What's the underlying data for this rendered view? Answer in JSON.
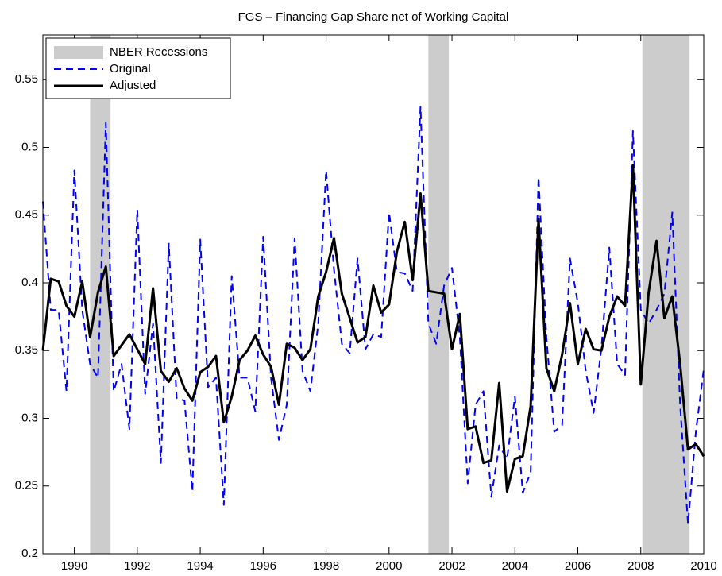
{
  "chart_data": {
    "type": "line",
    "title": "FGS – Financing Gap Share net of Working Capital",
    "x": [
      1989,
      1989.25,
      1989.5,
      1989.75,
      1990,
      1990.25,
      1990.5,
      1990.75,
      1991,
      1991.25,
      1991.5,
      1991.75,
      1992,
      1992.25,
      1992.5,
      1992.75,
      1993,
      1993.25,
      1993.5,
      1993.75,
      1994,
      1994.25,
      1994.5,
      1994.75,
      1995,
      1995.25,
      1995.5,
      1995.75,
      1996,
      1996.25,
      1996.5,
      1996.75,
      1997,
      1997.25,
      1997.5,
      1997.75,
      1998,
      1998.25,
      1998.5,
      1998.75,
      1999,
      1999.25,
      1999.5,
      1999.75,
      2000,
      2000.25,
      2000.5,
      2000.75,
      2001,
      2001.25,
      2001.5,
      2001.75,
      2002,
      2002.25,
      2002.5,
      2002.75,
      2003,
      2003.25,
      2003.5,
      2003.75,
      2004,
      2004.25,
      2004.5,
      2004.75,
      2005,
      2005.25,
      2005.5,
      2005.75,
      2006,
      2006.25,
      2006.5,
      2006.75,
      2007,
      2007.25,
      2007.5,
      2007.75,
      2008,
      2008.25,
      2008.5,
      2008.75,
      2009,
      2009.25,
      2009.5,
      2009.75,
      2010
    ],
    "recessions": {
      "name": "NBER Recessions",
      "color": "#cccccc",
      "spans": [
        [
          1990.5,
          1991.15
        ],
        [
          2001.25,
          2001.9
        ],
        [
          2008.05,
          2009.55
        ]
      ]
    },
    "series": [
      {
        "name": "Original",
        "color": "#0000ff",
        "line_style": "dashed",
        "width": 2,
        "values": [
          0.46,
          0.38,
          0.38,
          0.32,
          0.483,
          0.38,
          0.34,
          0.33,
          0.518,
          0.32,
          0.34,
          0.292,
          0.454,
          0.318,
          0.37,
          0.267,
          0.429,
          0.315,
          0.313,
          0.246,
          0.432,
          0.323,
          0.33,
          0.236,
          0.405,
          0.33,
          0.33,
          0.305,
          0.434,
          0.33,
          0.284,
          0.31,
          0.433,
          0.335,
          0.32,
          0.37,
          0.483,
          0.41,
          0.355,
          0.348,
          0.418,
          0.351,
          0.362,
          0.36,
          0.452,
          0.408,
          0.407,
          0.394,
          0.53,
          0.37,
          0.355,
          0.398,
          0.411,
          0.36,
          0.252,
          0.31,
          0.32,
          0.242,
          0.28,
          0.27,
          0.316,
          0.245,
          0.26,
          0.478,
          0.36,
          0.29,
          0.295,
          0.418,
          0.385,
          0.335,
          0.304,
          0.352,
          0.426,
          0.34,
          0.332,
          0.512,
          0.38,
          0.37,
          0.38,
          0.392,
          0.452,
          0.31,
          0.222,
          0.29,
          0.336
        ]
      },
      {
        "name": "Adjusted",
        "color": "#000000",
        "line_style": "solid",
        "width": 3,
        "values": [
          0.35,
          0.403,
          0.401,
          0.383,
          0.375,
          0.401,
          0.36,
          0.393,
          0.412,
          0.346,
          0.354,
          0.362,
          0.351,
          0.34,
          0.396,
          0.335,
          0.327,
          0.337,
          0.322,
          0.313,
          0.334,
          0.338,
          0.346,
          0.297,
          0.316,
          0.343,
          0.35,
          0.361,
          0.347,
          0.338,
          0.31,
          0.355,
          0.352,
          0.343,
          0.351,
          0.39,
          0.408,
          0.433,
          0.392,
          0.374,
          0.356,
          0.36,
          0.398,
          0.378,
          0.384,
          0.423,
          0.445,
          0.402,
          0.466,
          0.394,
          0.393,
          0.392,
          0.351,
          0.377,
          0.292,
          0.294,
          0.267,
          0.269,
          0.326,
          0.246,
          0.27,
          0.272,
          0.309,
          0.447,
          0.337,
          0.32,
          0.347,
          0.385,
          0.34,
          0.366,
          0.351,
          0.35,
          0.375,
          0.39,
          0.383,
          0.487,
          0.325,
          0.393,
          0.431,
          0.374,
          0.39,
          0.34,
          0.277,
          0.281,
          0.272
        ]
      }
    ],
    "xlim": [
      1989,
      2010
    ],
    "ylim": [
      0.2,
      0.583
    ],
    "xticks": [
      1990,
      1992,
      1994,
      1996,
      1998,
      2000,
      2002,
      2004,
      2006,
      2008,
      2010
    ],
    "yticks": [
      0.2,
      0.25,
      0.3,
      0.35,
      0.4,
      0.45,
      0.5,
      0.55
    ],
    "legend": "upper-left"
  }
}
